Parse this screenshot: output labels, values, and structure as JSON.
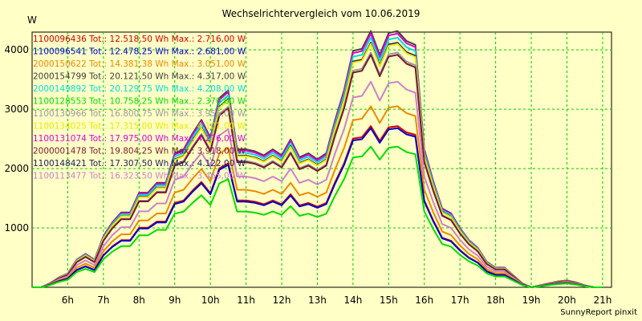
{
  "chart_data": {
    "type": "line",
    "title": "Wechselrichtervergleich vom 10.06.2019",
    "ylabel": "W",
    "credit": "SunnyReport pinxit",
    "xlim": [
      5.0,
      21.25
    ],
    "ylim": [
      0,
      4300
    ],
    "x_ticks": [
      6,
      7,
      8,
      9,
      10,
      11,
      12,
      13,
      14,
      15,
      16,
      17,
      18,
      19,
      20,
      21
    ],
    "x_tick_labels": [
      "6h",
      "7h",
      "8h",
      "9h",
      "10h",
      "11h",
      "12h",
      "13h",
      "14h",
      "15h",
      "16h",
      "17h",
      "18h",
      "19h",
      "20h",
      "21h"
    ],
    "y_ticks": [
      1000,
      2000,
      3000,
      4000
    ],
    "grid": true,
    "legend_position": "top-left",
    "x": [
      5.0,
      5.25,
      5.5,
      5.75,
      6.0,
      6.25,
      6.5,
      6.75,
      7.0,
      7.25,
      7.5,
      7.75,
      8.0,
      8.25,
      8.5,
      8.75,
      9.0,
      9.25,
      9.5,
      9.75,
      10.0,
      10.25,
      10.5,
      10.75,
      11.0,
      11.25,
      11.5,
      11.75,
      12.0,
      12.25,
      12.5,
      12.75,
      13.0,
      13.25,
      13.5,
      13.75,
      14.0,
      14.25,
      14.5,
      14.75,
      15.0,
      15.25,
      15.5,
      15.75,
      16.0,
      16.25,
      16.5,
      16.75,
      17.0,
      17.25,
      17.5,
      17.75,
      18.0,
      18.25,
      18.5,
      18.75,
      19.0,
      19.25,
      19.5,
      19.75,
      20.0,
      20.25,
      20.5,
      20.75,
      21.0
    ],
    "base_profile": [
      0,
      0,
      20,
      50,
      70,
      140,
      170,
      140,
      260,
      330,
      380,
      380,
      480,
      480,
      530,
      530,
      680,
      700,
      780,
      850,
      760,
      960,
      1000,
      700,
      700,
      690,
      670,
      700,
      670,
      750,
      660,
      680,
      650,
      680,
      850,
      1000,
      1200,
      1210,
      1300,
      1180,
      1290,
      1300,
      1250,
      1230,
      700,
      540,
      400,
      375,
      300,
      240,
      200,
      130,
      100,
      100,
      60,
      20,
      0,
      10,
      20,
      30,
      35,
      25,
      10,
      0,
      0
    ],
    "series": [
      {
        "name": "1100096436",
        "label": "1100096436 Tot.: 12.518,50 Wh Max.: 2.716,00 W",
        "color": "#d40000",
        "peak": 2716
      },
      {
        "name": "1100096541",
        "label": "1100096541 Tot.: 12.478,25 Wh Max.: 2.681,00 W",
        "color": "#0000cc",
        "peak": 2681
      },
      {
        "name": "2000150622",
        "label": "2000150622 Tot.: 14.381,38 Wh Max.: 3.051,00 W",
        "color": "#ee8800",
        "peak": 3051
      },
      {
        "name": "2000154799",
        "label": "2000154799 Tot.: 20.121,50 Wh Max.: 4.317,00 W",
        "color": "#404040",
        "peak": 4317
      },
      {
        "name": "2000149892",
        "label": "2000149892 Tot.: 20.129,75 Wh Max.: 4.208,00 W",
        "color": "#00dcdc",
        "peak": 4208
      },
      {
        "name": "1100128553",
        "label": "1100128553 Tot.: 10.758,25 Wh Max.: 2.370,00 W",
        "color": "#00dd00",
        "peak": 2370
      },
      {
        "name": "1100130966",
        "label": "1100130966 Tot.: 16.800,75 Wh Max.: 3.955,00 W",
        "color": "#9a9a9a",
        "peak": 3955
      },
      {
        "name": "1100134025",
        "label": "1100134025 Tot.: 17.315,00 Wh Max.: 4.101,00 W",
        "color": "#e8e800",
        "peak": 4101
      },
      {
        "name": "1100131074",
        "label": "1100131074 Tot.: 17.975,00 Wh Max.: 4.276,00 W",
        "color": "#dd00dd",
        "peak": 4276
      },
      {
        "name": "2000001478",
        "label": "2000001478 Tot.: 19.804,25 Wh Max.: 3.918,00 W",
        "color": "#7a1830",
        "peak": 3918
      },
      {
        "name": "1100148421",
        "label": "1100148421 Tot.: 17.307,50 Wh Max.: 4.122,00 W",
        "color": "#202060",
        "peak": 4122
      },
      {
        "name": "1100113477",
        "label": "1100113477 Tot.: 16.323,50 Wh Max.: 3.465,00 W",
        "color": "#cc80cc",
        "peak": 3465
      }
    ]
  }
}
